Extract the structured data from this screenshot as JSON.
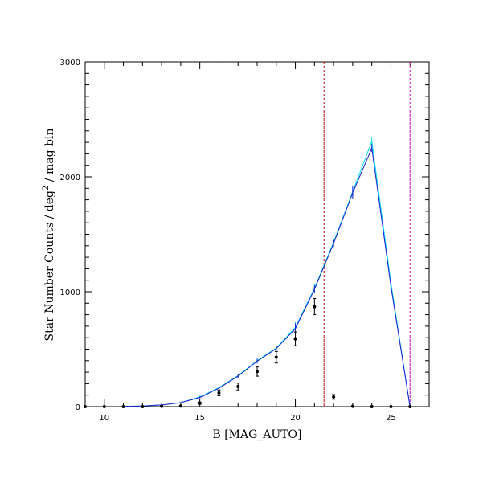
{
  "chart_data": {
    "type": "line",
    "title": "",
    "xlabel": "B [MAG_AUTO]",
    "ylabel_prefix": "Star Number Counts / deg",
    "ylabel_sup": "2",
    "ylabel_suffix": " / mag bin",
    "xlim": [
      9,
      27
    ],
    "ylim": [
      0,
      3000
    ],
    "x_ticks": [
      10,
      15,
      20,
      25
    ],
    "y_ticks": [
      0,
      1000,
      2000,
      3000
    ],
    "grid": false,
    "series": [
      {
        "color": "#00e5ee",
        "x": [
          11,
          12,
          13,
          14,
          15,
          16,
          17,
          18,
          19,
          20,
          21,
          22,
          23,
          24,
          25,
          26
        ],
        "y": [
          3,
          5,
          15,
          35,
          85,
          165,
          270,
          400,
          510,
          690,
          1030,
          1430,
          1870,
          2310,
          1080,
          0
        ],
        "errors": [
          1,
          1,
          2,
          4,
          8,
          12,
          15,
          20,
          25,
          45,
          35,
          30,
          55,
          35,
          30,
          0
        ]
      },
      {
        "color": "#1c1cd0",
        "x": [
          11,
          12,
          13,
          14,
          15,
          16,
          17,
          18,
          19,
          20,
          21,
          22,
          23,
          24,
          25,
          26
        ],
        "y": [
          3,
          5,
          15,
          35,
          80,
          160,
          265,
          395,
          505,
          680,
          1020,
          1420,
          1860,
          2250,
          1050,
          0
        ],
        "errors": [
          1,
          1,
          2,
          4,
          8,
          12,
          15,
          20,
          25,
          45,
          35,
          30,
          55,
          35,
          30,
          0
        ]
      }
    ],
    "points": {
      "color": "#000000",
      "x": [
        9,
        10,
        11,
        12,
        13,
        14,
        15,
        16,
        17,
        18,
        19,
        20,
        21,
        22,
        23,
        24,
        25,
        26
      ],
      "y": [
        0,
        0,
        0,
        0,
        3,
        5,
        30,
        120,
        175,
        305,
        430,
        590,
        870,
        85,
        3,
        0,
        0,
        0
      ],
      "errors": [
        0,
        0,
        0,
        0,
        2,
        3,
        10,
        25,
        30,
        40,
        50,
        60,
        70,
        20,
        2,
        0,
        0,
        0
      ]
    },
    "vlines": [
      {
        "x": 21.5,
        "color": "#cc0000"
      },
      {
        "x": 26.0,
        "color": "#cc00cc"
      }
    ]
  }
}
